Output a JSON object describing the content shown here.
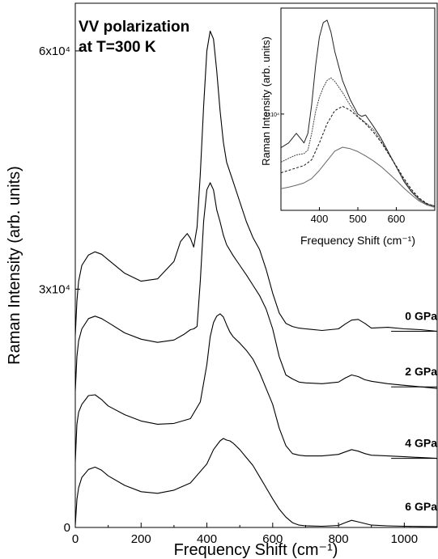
{
  "chart_data": [
    {
      "type": "line",
      "title": "VV polarization\nat T=300 K",
      "title_lines": [
        "VV polarization",
        "at T=300 K"
      ],
      "xlabel": "Frequency Shift (cm⁻¹)",
      "ylabel": "Raman Intensity (arb. units)",
      "xlim": [
        0,
        1100
      ],
      "ylim": [
        0,
        66000
      ],
      "xticks": [
        0,
        200,
        400,
        600,
        800,
        1000
      ],
      "xtick_labels": [
        "0",
        "200",
        "400",
        "600",
        "800",
        "1000"
      ],
      "yticks": [
        0,
        30000,
        60000
      ],
      "ytick_labels": [
        "0",
        "3x10⁴",
        "6x10⁴"
      ],
      "grid": false,
      "legend": "none",
      "series": [
        {
          "name": "0 GPa",
          "offset": 24000,
          "x": [
            0,
            5,
            10,
            20,
            40,
            60,
            80,
            100,
            150,
            200,
            250,
            300,
            320,
            340,
            350,
            360,
            370,
            380,
            390,
            400,
            410,
            420,
            430,
            440,
            450,
            460,
            480,
            500,
            520,
            540,
            560,
            580,
            600,
            620,
            640,
            660,
            680,
            700,
            750,
            800,
            820,
            840,
            860,
            880,
            900,
            950,
            1000,
            1050,
            1100
          ],
          "y": [
            24200,
            28500,
            31000,
            33000,
            34300,
            34700,
            34400,
            33700,
            32000,
            31000,
            31300,
            33500,
            36000,
            37000,
            36400,
            35300,
            37800,
            44500,
            53000,
            60000,
            62500,
            61500,
            57500,
            52500,
            48500,
            46000,
            43500,
            41000,
            38500,
            36500,
            35000,
            32500,
            29500,
            27000,
            25700,
            25300,
            25100,
            25000,
            24800,
            25000,
            25600,
            26100,
            26200,
            25700,
            25100,
            25200,
            25000,
            24900,
            24700
          ]
        },
        {
          "name": "2 GPa",
          "offset": 17000,
          "x": [
            0,
            5,
            10,
            20,
            40,
            60,
            80,
            100,
            150,
            200,
            250,
            300,
            330,
            350,
            360,
            370,
            380,
            390,
            400,
            410,
            420,
            430,
            440,
            450,
            460,
            480,
            500,
            520,
            540,
            560,
            580,
            600,
            620,
            640,
            660,
            680,
            700,
            750,
            800,
            820,
            840,
            860,
            880,
            900,
            950,
            1000,
            1050,
            1100
          ],
          "y": [
            17200,
            21500,
            23500,
            25000,
            26300,
            26600,
            26300,
            25800,
            24500,
            23700,
            23300,
            23600,
            24300,
            24900,
            25000,
            25300,
            31000,
            38500,
            42500,
            43400,
            42500,
            40000,
            38500,
            36800,
            35600,
            34200,
            33000,
            31800,
            30500,
            29200,
            27500,
            25000,
            21500,
            19200,
            18700,
            18300,
            18200,
            18100,
            18300,
            18800,
            19200,
            19000,
            18600,
            18400,
            18100,
            17900,
            17700,
            17500
          ]
        },
        {
          "name": "4 GPa",
          "offset": 8000,
          "x": [
            0,
            5,
            10,
            20,
            40,
            60,
            80,
            100,
            150,
            200,
            250,
            300,
            350,
            380,
            400,
            410,
            420,
            430,
            440,
            450,
            460,
            470,
            480,
            500,
            520,
            540,
            560,
            580,
            600,
            620,
            640,
            660,
            680,
            700,
            750,
            800,
            820,
            840,
            860,
            880,
            900,
            950,
            1000,
            1050,
            1100
          ],
          "y": [
            8300,
            13000,
            14500,
            15500,
            16600,
            16700,
            16100,
            15300,
            14200,
            13400,
            13000,
            13100,
            13700,
            15800,
            20500,
            24000,
            25800,
            26600,
            26900,
            26500,
            25500,
            24600,
            24000,
            23200,
            22300,
            21200,
            19500,
            17500,
            15500,
            12500,
            10300,
            9300,
            9100,
            9000,
            9000,
            9200,
            9500,
            9800,
            9600,
            9300,
            9100,
            9000,
            8900,
            8800,
            8700
          ]
        },
        {
          "name": "6 GPa",
          "offset": 0,
          "x": [
            0,
            5,
            10,
            20,
            40,
            60,
            80,
            100,
            150,
            200,
            250,
            300,
            350,
            400,
            420,
            440,
            450,
            460,
            470,
            480,
            500,
            520,
            540,
            560,
            580,
            600,
            620,
            640,
            660,
            680,
            700,
            750,
            800,
            820,
            840,
            860,
            880,
            900,
            950,
            1000,
            1050,
            1100
          ],
          "y": [
            300,
            3500,
            5000,
            6300,
            7300,
            7600,
            7200,
            6500,
            5300,
            4500,
            4300,
            4700,
            5600,
            8000,
            9800,
            10900,
            11200,
            11000,
            10900,
            10600,
            9800,
            8800,
            7800,
            6400,
            5000,
            3600,
            2300,
            1300,
            600,
            300,
            200,
            150,
            250,
            600,
            900,
            700,
            500,
            300,
            200,
            150,
            120,
            100
          ]
        }
      ]
    },
    {
      "type": "line",
      "title": "",
      "xlabel": "Frequency Shift (cm⁻¹)",
      "ylabel": "Raman Intensity (arb. units)",
      "xlim": [
        300,
        700
      ],
      "ylim": [
        0,
        42000
      ],
      "xticks": [
        400,
        500,
        600
      ],
      "xtick_labels": [
        "400",
        "500",
        "600"
      ],
      "yticks": [
        20000
      ],
      "ytick_labels": [
        "2x10⁴"
      ],
      "grid": false,
      "legend": "none",
      "series": [
        {
          "x": [
            300,
            320,
            340,
            350,
            360,
            370,
            380,
            390,
            400,
            410,
            420,
            430,
            440,
            460,
            480,
            500,
            510,
            520,
            540,
            560,
            580,
            600,
            620,
            640,
            660,
            680,
            700
          ],
          "y": [
            13000,
            14000,
            16000,
            15000,
            14000,
            16000,
            22000,
            30000,
            36000,
            39000,
            39500,
            37000,
            33000,
            27000,
            23000,
            20000,
            19500,
            19800,
            17500,
            15000,
            12000,
            9000,
            6000,
            3800,
            2200,
            1300,
            900
          ]
        },
        {
          "x": [
            300,
            320,
            340,
            360,
            370,
            380,
            390,
            400,
            410,
            420,
            430,
            440,
            460,
            480,
            500,
            520,
            540,
            560,
            580,
            600,
            620,
            640,
            660,
            680,
            700
          ],
          "y": [
            10000,
            10800,
            11500,
            11800,
            12500,
            16000,
            20500,
            23500,
            25500,
            27000,
            27500,
            26800,
            24500,
            21800,
            19500,
            18200,
            16800,
            14500,
            11800,
            9000,
            6300,
            4000,
            2300,
            1300,
            800
          ]
        },
        {
          "x": [
            300,
            320,
            340,
            360,
            380,
            400,
            420,
            440,
            460,
            480,
            500,
            520,
            540,
            560,
            580,
            600,
            620,
            640,
            660,
            680,
            700
          ],
          "y": [
            7800,
            8300,
            8800,
            9300,
            10500,
            14000,
            18000,
            20700,
            21600,
            20800,
            19400,
            18000,
            16300,
            14200,
            11700,
            9200,
            6600,
            4300,
            2500,
            1400,
            800
          ]
        },
        {
          "x": [
            300,
            320,
            340,
            360,
            380,
            400,
            420,
            440,
            460,
            480,
            500,
            520,
            540,
            560,
            580,
            600,
            620,
            640,
            660,
            680,
            700
          ],
          "y": [
            4500,
            4800,
            5200,
            5700,
            6600,
            8300,
            10300,
            12300,
            13100,
            12800,
            12200,
            11300,
            10300,
            9100,
            7700,
            6200,
            4600,
            3200,
            1900,
            1100,
            600
          ]
        }
      ]
    }
  ]
}
